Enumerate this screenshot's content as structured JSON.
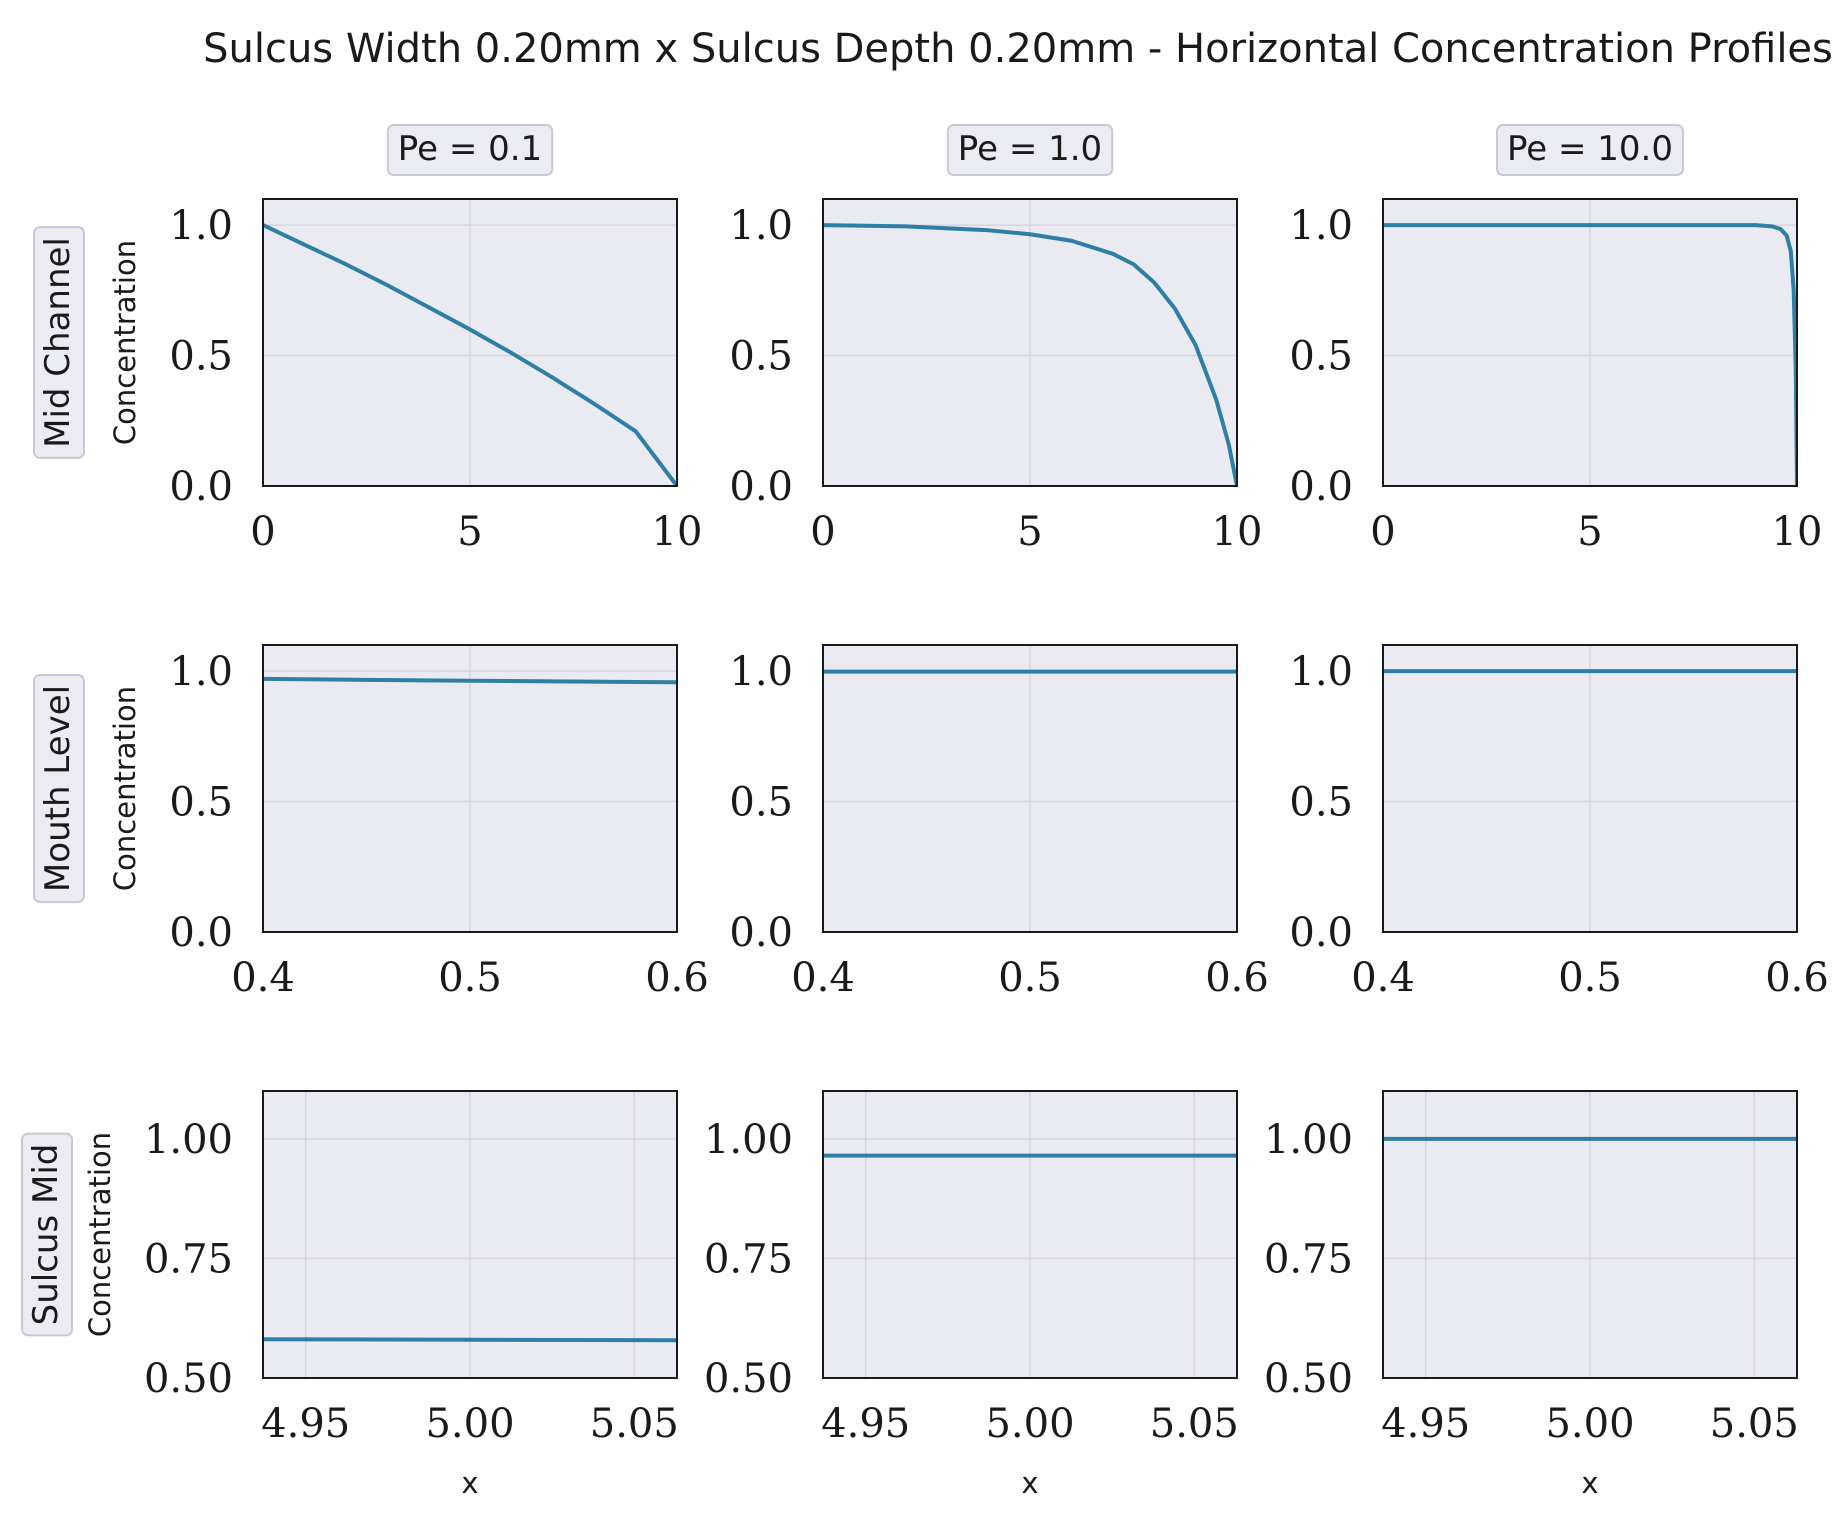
{
  "figure": {
    "title": "Sulcus Width 0.20mm x Sulcus Depth 0.20mm - Horizontal Concentration Profiles",
    "column_titles": [
      "Pe = 0.1",
      "Pe = 1.0",
      "Pe = 10.0"
    ],
    "row_labels": [
      "Mid Channel",
      "Mouth Level",
      "Sulcus Mid"
    ],
    "series_color": "#2e7fa5",
    "background_color": "#eaeaf2"
  },
  "chart_data": [
    {
      "type": "line",
      "row": 0,
      "col": 0,
      "xlabel": "",
      "ylabel": "Concentration",
      "xlim": [
        0,
        10
      ],
      "ylim": [
        0,
        1.1
      ],
      "xticks": [
        0,
        5,
        10
      ],
      "xtick_labels": [
        "0",
        "5",
        "10"
      ],
      "yticks": [
        0,
        0.5,
        1.0
      ],
      "ytick_labels": [
        "0.0",
        "0.5",
        "1.0"
      ],
      "x": [
        0,
        1,
        2,
        3,
        4,
        5,
        6,
        7,
        8,
        9,
        10
      ],
      "y": [
        1.0,
        0.925,
        0.85,
        0.77,
        0.685,
        0.6,
        0.51,
        0.415,
        0.315,
        0.21,
        0.0
      ]
    },
    {
      "type": "line",
      "row": 0,
      "col": 1,
      "xlabel": "",
      "ylabel": "",
      "xlim": [
        0,
        10
      ],
      "ylim": [
        0,
        1.1
      ],
      "xticks": [
        0,
        5,
        10
      ],
      "xtick_labels": [
        "0",
        "5",
        "10"
      ],
      "yticks": [
        0,
        0.5,
        1.0
      ],
      "ytick_labels": [
        "0.0",
        "0.5",
        "1.0"
      ],
      "x": [
        0,
        2,
        4,
        5,
        6,
        7,
        7.5,
        8,
        8.5,
        9,
        9.5,
        9.8,
        10
      ],
      "y": [
        1.0,
        0.995,
        0.98,
        0.965,
        0.94,
        0.89,
        0.85,
        0.78,
        0.68,
        0.54,
        0.33,
        0.16,
        0.0
      ]
    },
    {
      "type": "line",
      "row": 0,
      "col": 2,
      "xlabel": "",
      "ylabel": "",
      "xlim": [
        0,
        10
      ],
      "ylim": [
        0,
        1.1
      ],
      "xticks": [
        0,
        5,
        10
      ],
      "xtick_labels": [
        "0",
        "5",
        "10"
      ],
      "yticks": [
        0,
        0.5,
        1.0
      ],
      "ytick_labels": [
        "0.0",
        "0.5",
        "1.0"
      ],
      "x": [
        0,
        5,
        9.0,
        9.4,
        9.6,
        9.75,
        9.85,
        9.92,
        9.97,
        10
      ],
      "y": [
        1.0,
        1.0,
        1.0,
        0.995,
        0.985,
        0.96,
        0.9,
        0.75,
        0.45,
        0.0
      ]
    },
    {
      "type": "line",
      "row": 1,
      "col": 0,
      "xlabel": "",
      "ylabel": "Concentration",
      "xlim": [
        0.4,
        0.6
      ],
      "ylim": [
        0,
        1.1
      ],
      "xticks": [
        0.4,
        0.5,
        0.6
      ],
      "xtick_labels": [
        "0.4",
        "0.5",
        "0.6"
      ],
      "yticks": [
        0,
        0.5,
        1.0
      ],
      "ytick_labels": [
        "0.0",
        "0.5",
        "1.0"
      ],
      "x": [
        0.4,
        0.5,
        0.6
      ],
      "y": [
        0.97,
        0.963,
        0.957
      ]
    },
    {
      "type": "line",
      "row": 1,
      "col": 1,
      "xlabel": "",
      "ylabel": "",
      "xlim": [
        0.4,
        0.6
      ],
      "ylim": [
        0,
        1.1
      ],
      "xticks": [
        0.4,
        0.5,
        0.6
      ],
      "xtick_labels": [
        "0.4",
        "0.5",
        "0.6"
      ],
      "yticks": [
        0,
        0.5,
        1.0
      ],
      "ytick_labels": [
        "0.0",
        "0.5",
        "1.0"
      ],
      "x": [
        0.4,
        0.6
      ],
      "y": [
        0.998,
        0.998
      ]
    },
    {
      "type": "line",
      "row": 1,
      "col": 2,
      "xlabel": "",
      "ylabel": "",
      "xlim": [
        0.4,
        0.6
      ],
      "ylim": [
        0,
        1.1
      ],
      "xticks": [
        0.4,
        0.5,
        0.6
      ],
      "xtick_labels": [
        "0.4",
        "0.5",
        "0.6"
      ],
      "yticks": [
        0,
        0.5,
        1.0
      ],
      "ytick_labels": [
        "0.0",
        "0.5",
        "1.0"
      ],
      "x": [
        0.4,
        0.6
      ],
      "y": [
        1.0,
        1.0
      ]
    },
    {
      "type": "line",
      "row": 2,
      "col": 0,
      "xlabel": "x",
      "ylabel": "Concentration",
      "xlim": [
        4.937,
        5.063
      ],
      "ylim": [
        0.5,
        1.1
      ],
      "xticks": [
        4.95,
        5.0,
        5.05
      ],
      "xtick_labels": [
        "4.95",
        "5.00",
        "5.05"
      ],
      "yticks": [
        0.5,
        0.75,
        1.0
      ],
      "ytick_labels": [
        "0.50",
        "0.75",
        "1.00"
      ],
      "x": [
        4.937,
        5.0,
        5.063
      ],
      "y": [
        0.581,
        0.58,
        0.579
      ]
    },
    {
      "type": "line",
      "row": 2,
      "col": 1,
      "xlabel": "x",
      "ylabel": "",
      "xlim": [
        4.937,
        5.063
      ],
      "ylim": [
        0.5,
        1.1
      ],
      "xticks": [
        4.95,
        5.0,
        5.05
      ],
      "xtick_labels": [
        "4.95",
        "5.00",
        "5.05"
      ],
      "yticks": [
        0.5,
        0.75,
        1.0
      ],
      "ytick_labels": [
        "0.50",
        "0.75",
        "1.00"
      ],
      "x": [
        4.937,
        5.063
      ],
      "y": [
        0.965,
        0.965
      ]
    },
    {
      "type": "line",
      "row": 2,
      "col": 2,
      "xlabel": "x",
      "ylabel": "",
      "xlim": [
        4.937,
        5.063
      ],
      "ylim": [
        0.5,
        1.1
      ],
      "xticks": [
        4.95,
        5.0,
        5.05
      ],
      "xtick_labels": [
        "4.95",
        "5.00",
        "5.05"
      ],
      "yticks": [
        0.5,
        0.75,
        1.0
      ],
      "ytick_labels": [
        "0.50",
        "0.75",
        "1.00"
      ],
      "x": [
        4.937,
        5.063
      ],
      "y": [
        1.0,
        1.0
      ]
    }
  ]
}
